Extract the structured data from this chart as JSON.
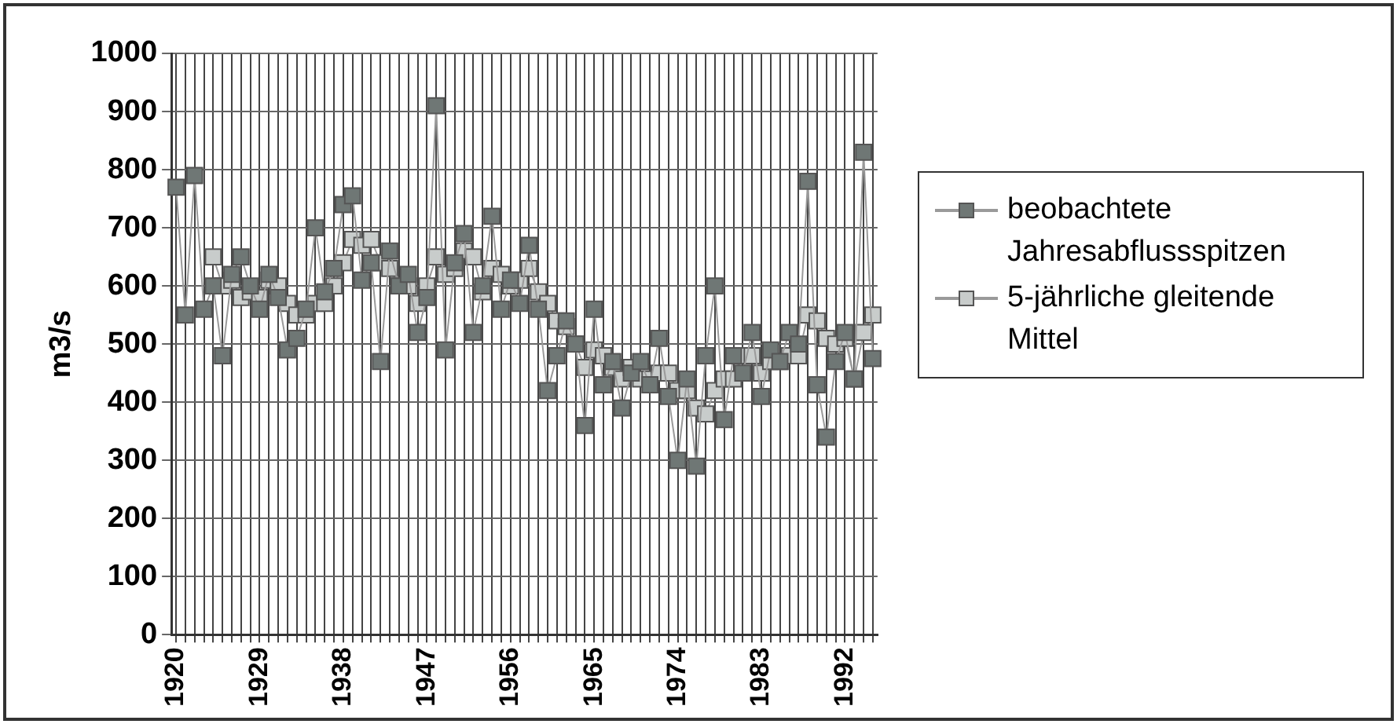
{
  "chart_data": {
    "type": "line",
    "ylabel": "m3/s",
    "categories": [
      "1920",
      null,
      null,
      null,
      null,
      null,
      null,
      null,
      null,
      "1929",
      null,
      null,
      null,
      null,
      null,
      null,
      null,
      null,
      "1938",
      null,
      null,
      null,
      null,
      null,
      null,
      null,
      null,
      "1947",
      null,
      null,
      null,
      null,
      null,
      null,
      null,
      null,
      "1956",
      null,
      null,
      null,
      null,
      null,
      null,
      null,
      null,
      "1965",
      null,
      null,
      null,
      null,
      null,
      null,
      null,
      null,
      "1974",
      null,
      null,
      null,
      null,
      null,
      null,
      null,
      null,
      "1983",
      null,
      null,
      null,
      null,
      null,
      null,
      null,
      null,
      "1992",
      null,
      null,
      null
    ],
    "series": [
      {
        "name": "beobachtete Jahresabflussspitzen",
        "color": "#6f7775",
        "values": [
          770,
          550,
          790,
          560,
          600,
          480,
          620,
          650,
          600,
          560,
          620,
          580,
          490,
          510,
          560,
          700,
          590,
          630,
          740,
          755,
          610,
          640,
          470,
          660,
          600,
          620,
          520,
          580,
          910,
          490,
          640,
          690,
          520,
          600,
          720,
          560,
          610,
          570,
          670,
          560,
          420,
          480,
          540,
          500,
          360,
          560,
          430,
          470,
          390,
          450,
          470,
          430,
          510,
          410,
          300,
          440,
          290,
          480,
          600,
          370,
          480,
          450,
          520,
          410,
          490,
          470,
          520,
          500,
          780,
          430,
          340,
          470,
          520,
          440,
          830,
          475
        ]
      },
      {
        "name": "5-jährliche gleitende Mittel",
        "color": "#c8cccb",
        "values": [
          null,
          null,
          null,
          null,
          650,
          600,
          610,
          580,
          590,
          580,
          610,
          600,
          570,
          550,
          550,
          570,
          570,
          600,
          640,
          680,
          670,
          680,
          640,
          630,
          600,
          600,
          570,
          600,
          650,
          620,
          630,
          660,
          650,
          590,
          630,
          620,
          600,
          610,
          630,
          590,
          570,
          540,
          530,
          500,
          460,
          490,
          480,
          460,
          440,
          460,
          440,
          440,
          450,
          450,
          420,
          420,
          390,
          380,
          420,
          440,
          440,
          480,
          480,
          450,
          470,
          470,
          480,
          480,
          550,
          540,
          510,
          500,
          510,
          440,
          520,
          550
        ]
      }
    ],
    "ylim": [
      0,
      1000
    ],
    "yticks": [
      0,
      100,
      200,
      300,
      400,
      500,
      600,
      700,
      800,
      900,
      1000
    ],
    "grid": true,
    "legend": "right",
    "marker": "square",
    "line_style": "solid"
  }
}
